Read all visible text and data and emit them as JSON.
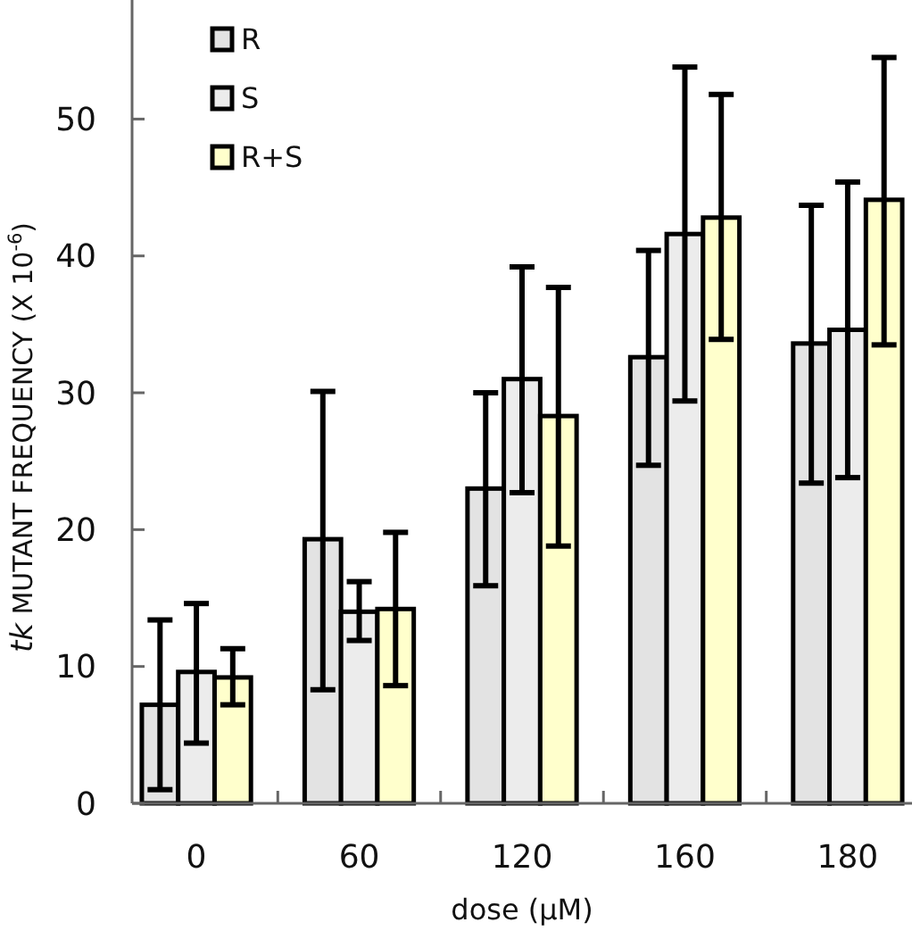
{
  "chart_data": {
    "type": "bar",
    "xlabel": "dose (μM)",
    "ylabel": "tk MUTANT FREQUENCY (X 10$^{-6}$)",
    "categories": [
      "0",
      "60",
      "120",
      "160",
      "180"
    ],
    "ylim": [
      0,
      58.7
    ],
    "yticks": [
      0,
      10,
      20,
      30,
      40,
      50
    ],
    "legend": "top left",
    "grid": false,
    "series": [
      {
        "name": "R",
        "color": "#e3e3e3",
        "values": [
          7.2,
          19.3,
          23,
          32.6,
          33.6
        ],
        "errors": [
          [
            1.0,
            13.4
          ],
          [
            8.3,
            30.1
          ],
          [
            15.9,
            30.0
          ],
          [
            24.7,
            40.4
          ],
          [
            23.4,
            43.7
          ]
        ]
      },
      {
        "name": "S",
        "color": "#ececec",
        "values": [
          9.6,
          14,
          31,
          41.6,
          34.6
        ],
        "errors": [
          [
            4.4,
            14.6
          ],
          [
            11.9,
            16.2
          ],
          [
            22.7,
            39.2
          ],
          [
            29.4,
            53.8
          ],
          [
            23.8,
            45.4
          ]
        ]
      },
      {
        "name": "R+S",
        "color": "#ffffcc",
        "values": [
          9.2,
          14.2,
          28.3,
          42.8,
          44.1
        ],
        "errors": [
          [
            7.2,
            11.3
          ],
          [
            8.6,
            19.8
          ],
          [
            18.8,
            37.7
          ],
          [
            33.9,
            51.8
          ],
          [
            33.5,
            54.5
          ]
        ]
      }
    ]
  }
}
